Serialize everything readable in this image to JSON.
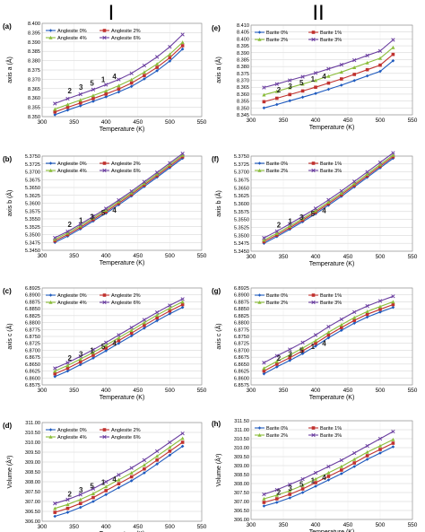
{
  "columns": [
    {
      "roman": "I"
    },
    {
      "roman": "II"
    }
  ],
  "colors": {
    "s0": "#1f5bbf",
    "s1": "#c0312e",
    "s2": "#8bbd3b",
    "s3": "#6b3fa0"
  },
  "chart_data": [
    {
      "panel": "(a)",
      "type": "line",
      "ylabel": "axis a  (Å)",
      "xlabel": "Temperature  (K)",
      "xlim": [
        300,
        550
      ],
      "xticks": [
        "300",
        "350",
        "400",
        "450",
        "500",
        "550"
      ],
      "ylim": [
        8.35,
        8.4
      ],
      "yticks": [
        "8.350",
        "8.355",
        "8.360",
        "8.365",
        "8.370",
        "8.375",
        "8.380",
        "8.385",
        "8.390",
        "8.395",
        "8.400"
      ],
      "legend": "top-left",
      "x": [
        320,
        340,
        360,
        380,
        400,
        420,
        440,
        460,
        480,
        500,
        520
      ],
      "series": [
        {
          "name": "Anglesite 0%",
          "values": [
            8.351,
            8.3535,
            8.3558,
            8.3582,
            8.3606,
            8.3632,
            8.3662,
            8.3702,
            8.3746,
            8.3798,
            8.3862
          ]
        },
        {
          "name": "Anglesite 2%",
          "values": [
            8.3525,
            8.355,
            8.3573,
            8.3597,
            8.3621,
            8.3648,
            8.368,
            8.372,
            8.3764,
            8.3816,
            8.388
          ]
        },
        {
          "name": "Anglesite 4%",
          "values": [
            8.354,
            8.3565,
            8.3589,
            8.3613,
            8.3638,
            8.3666,
            8.3698,
            8.3738,
            8.3782,
            8.3834,
            8.3898
          ]
        },
        {
          "name": "Anglesite 6%",
          "values": [
            8.357,
            8.3596,
            8.362,
            8.3645,
            8.3671,
            8.3699,
            8.3732,
            8.3774,
            8.382,
            8.3874,
            8.394
          ]
        }
      ],
      "annotations": [
        "2",
        "3",
        "5",
        "1",
        "4"
      ]
    },
    {
      "panel": "(b)",
      "type": "line",
      "ylabel": "axis b  (Å)",
      "xlabel": "Temperature  (K)",
      "xlim": [
        300,
        550
      ],
      "xticks": [
        "300",
        "350",
        "400",
        "450",
        "500",
        "550"
      ],
      "ylim": [
        5.345,
        5.375
      ],
      "yticks": [
        "5.3450",
        "5.3475",
        "5.3500",
        "5.3525",
        "5.3550",
        "5.3575",
        "5.3600",
        "5.3625",
        "5.3650",
        "5.3675",
        "5.3700",
        "5.3725",
        "5.3750"
      ],
      "legend": "top-left",
      "x": [
        320,
        340,
        360,
        380,
        400,
        420,
        440,
        460,
        480,
        500,
        520
      ],
      "series": [
        {
          "name": "Anglesite 0%",
          "values": [
            5.3475,
            5.3495,
            5.3518,
            5.3543,
            5.3568,
            5.3595,
            5.3623,
            5.3653,
            5.3683,
            5.3713,
            5.3743
          ]
        },
        {
          "name": "Anglesite 2%",
          "values": [
            5.348,
            5.35,
            5.3523,
            5.3548,
            5.3573,
            5.36,
            5.3628,
            5.3658,
            5.3688,
            5.3718,
            5.3748
          ]
        },
        {
          "name": "Anglesite 4%",
          "values": [
            5.3485,
            5.3505,
            5.3528,
            5.3553,
            5.3578,
            5.3605,
            5.3633,
            5.3663,
            5.3693,
            5.3723,
            5.3753
          ]
        },
        {
          "name": "Anglesite 6%",
          "values": [
            5.349,
            5.351,
            5.3533,
            5.3558,
            5.3583,
            5.361,
            5.3638,
            5.3668,
            5.3698,
            5.3728,
            5.3758
          ]
        }
      ],
      "annotations": [
        "2",
        "1",
        "3",
        "5",
        "4"
      ]
    },
    {
      "panel": "(c)",
      "type": "line",
      "ylabel": "axis c  (Å)",
      "xlabel": "Temperature  (K)",
      "xlim": [
        300,
        550
      ],
      "xticks": [
        "300",
        "350",
        "400",
        "450",
        "500",
        "550"
      ],
      "ylim": [
        6.8575,
        6.8925
      ],
      "yticks": [
        "6.8575",
        "6.8600",
        "6.8625",
        "6.8650",
        "6.8675",
        "6.8700",
        "6.8725",
        "6.8750",
        "6.8775",
        "6.8800",
        "6.8825",
        "6.8850",
        "6.8875",
        "6.8900",
        "6.8925"
      ],
      "legend": "top-left",
      "x": [
        320,
        340,
        360,
        380,
        400,
        420,
        440,
        460,
        480,
        500,
        520
      ],
      "series": [
        {
          "name": "Anglesite 0%",
          "values": [
            6.8605,
            6.8625,
            6.8648,
            6.8672,
            6.8698,
            6.8725,
            6.8752,
            6.878,
            6.8807,
            6.8832,
            6.8855
          ]
        },
        {
          "name": "Anglesite 2%",
          "values": [
            6.8615,
            6.8635,
            6.8658,
            6.8682,
            6.8708,
            6.8735,
            6.8762,
            6.879,
            6.8817,
            6.8842,
            6.8865
          ]
        },
        {
          "name": "Anglesite 4%",
          "values": [
            6.8625,
            6.8645,
            6.8668,
            6.8692,
            6.8718,
            6.8745,
            6.8772,
            6.88,
            6.8827,
            6.8852,
            6.8875
          ]
        },
        {
          "name": "Anglesite 6%",
          "values": [
            6.8635,
            6.8655,
            6.8678,
            6.8702,
            6.8728,
            6.8755,
            6.8782,
            6.881,
            6.8837,
            6.8862,
            6.8885
          ]
        }
      ],
      "annotations": [
        "2",
        "3",
        "1",
        "5",
        "4"
      ]
    },
    {
      "panel": "(d)",
      "type": "line",
      "ylabel": "Volume  (Å³)",
      "xlabel": "Temperature  (K)",
      "xlim": [
        300,
        550
      ],
      "xticks": [
        "300",
        "350",
        "400",
        "450",
        "500",
        "550"
      ],
      "ylim": [
        306.0,
        311.0
      ],
      "yticks": [
        "306.00",
        "306.50",
        "307.00",
        "307.50",
        "308.00",
        "308.50",
        "309.00",
        "309.50",
        "310.00",
        "310.50",
        "311.00"
      ],
      "legend": "top-left",
      "x": [
        320,
        340,
        360,
        380,
        400,
        420,
        440,
        460,
        480,
        500,
        520
      ],
      "series": [
        {
          "name": "Anglesite 0%",
          "values": [
            306.25,
            306.45,
            306.7,
            307.0,
            307.35,
            307.7,
            308.05,
            308.45,
            308.9,
            309.35,
            309.8
          ]
        },
        {
          "name": "Anglesite 2%",
          "values": [
            306.45,
            306.65,
            306.9,
            307.2,
            307.55,
            307.9,
            308.25,
            308.65,
            309.1,
            309.55,
            310.0
          ]
        },
        {
          "name": "Anglesite 4%",
          "values": [
            306.65,
            306.85,
            307.1,
            307.4,
            307.75,
            308.1,
            308.45,
            308.85,
            309.3,
            309.75,
            310.2
          ]
        },
        {
          "name": "Anglesite 6%",
          "values": [
            306.9,
            307.1,
            307.35,
            307.65,
            308.0,
            308.35,
            308.7,
            309.1,
            309.55,
            310.0,
            310.45
          ]
        }
      ],
      "annotations": [
        "2",
        "3",
        "5",
        "1",
        "4"
      ]
    },
    {
      "panel": "(e)",
      "type": "line",
      "ylabel": "axis a  (Å)",
      "xlabel": "Temperature  (K)",
      "xlim": [
        300,
        550
      ],
      "xticks": [
        "300",
        "350",
        "400",
        "450",
        "500",
        "550"
      ],
      "ylim": [
        8.345,
        8.41
      ],
      "yticks": [
        "8.345",
        "8.350",
        "8.355",
        "8.360",
        "8.365",
        "8.370",
        "8.375",
        "8.380",
        "8.385",
        "8.390",
        "8.395",
        "8.400",
        "8.405",
        "8.410"
      ],
      "legend": "top-left",
      "x": [
        320,
        340,
        360,
        380,
        400,
        420,
        440,
        460,
        480,
        500,
        520
      ],
      "series": [
        {
          "name": "Barite 0%",
          "values": [
            8.35,
            8.3525,
            8.3552,
            8.3578,
            8.3605,
            8.3635,
            8.3665,
            8.3698,
            8.3732,
            8.3765,
            8.3842
          ]
        },
        {
          "name": "Barite 1%",
          "values": [
            8.3545,
            8.357,
            8.3597,
            8.3623,
            8.365,
            8.368,
            8.371,
            8.3743,
            8.3777,
            8.381,
            8.3888
          ]
        },
        {
          "name": "Barite 2%",
          "values": [
            8.3595,
            8.362,
            8.3647,
            8.3673,
            8.37,
            8.373,
            8.376,
            8.3793,
            8.3827,
            8.386,
            8.3938
          ]
        },
        {
          "name": "Barite 3%",
          "values": [
            8.3648,
            8.3673,
            8.37,
            8.3726,
            8.3753,
            8.3783,
            8.3813,
            8.3846,
            8.388,
            8.3913,
            8.3993
          ]
        }
      ],
      "annotations": [
        "2",
        "3",
        "5",
        "1",
        "4"
      ]
    },
    {
      "panel": "(f)",
      "type": "line",
      "ylabel": "axis b  (Å)",
      "xlabel": "Temperature  (K)",
      "xlim": [
        300,
        550
      ],
      "xticks": [
        "300",
        "350",
        "400",
        "450",
        "500",
        "550"
      ],
      "ylim": [
        5.345,
        5.375
      ],
      "yticks": [
        "5.3450",
        "5.3475",
        "5.3500",
        "5.3525",
        "5.3550",
        "5.3575",
        "5.3600",
        "5.3625",
        "5.3650",
        "5.3675",
        "5.3700",
        "5.3725",
        "5.3750"
      ],
      "legend": "top-left",
      "x": [
        320,
        340,
        360,
        380,
        400,
        420,
        440,
        460,
        480,
        500,
        520
      ],
      "series": [
        {
          "name": "Barite 0%",
          "values": [
            5.3475,
            5.3496,
            5.3519,
            5.3543,
            5.3568,
            5.3595,
            5.3623,
            5.3653,
            5.3683,
            5.3713,
            5.3743
          ]
        },
        {
          "name": "Barite 1%",
          "values": [
            5.348,
            5.3501,
            5.3524,
            5.3548,
            5.3573,
            5.36,
            5.3628,
            5.3658,
            5.3688,
            5.3718,
            5.3748
          ]
        },
        {
          "name": "Barite 2%",
          "values": [
            5.3485,
            5.3506,
            5.3529,
            5.3553,
            5.3578,
            5.3605,
            5.3633,
            5.3663,
            5.3693,
            5.3723,
            5.3753
          ]
        },
        {
          "name": "Barite 3%",
          "values": [
            5.3492,
            5.3513,
            5.3536,
            5.356,
            5.3585,
            5.3612,
            5.364,
            5.367,
            5.37,
            5.373,
            5.376
          ]
        }
      ],
      "annotations": [
        "2",
        "1",
        "3",
        "5",
        "4"
      ]
    },
    {
      "panel": "(g)",
      "type": "line",
      "ylabel": "axis c  (Å)",
      "xlabel": "Temperature  (K)",
      "xlim": [
        300,
        550
      ],
      "xticks": [
        "300",
        "350",
        "400",
        "450",
        "500",
        "550"
      ],
      "ylim": [
        6.8575,
        6.8925
      ],
      "yticks": [
        "6.8575",
        "6.8600",
        "6.8625",
        "6.8650",
        "6.8675",
        "6.8700",
        "6.8725",
        "6.8750",
        "6.8775",
        "6.8800",
        "6.8825",
        "6.8850",
        "6.8875",
        "6.8900",
        "6.8925"
      ],
      "legend": "top-left",
      "x": [
        320,
        340,
        360,
        380,
        400,
        420,
        440,
        460,
        480,
        500,
        520
      ],
      "series": [
        {
          "name": "Barite 0%",
          "values": [
            6.8615,
            6.864,
            6.8663,
            6.8688,
            6.8715,
            6.8745,
            6.8772,
            6.8798,
            6.882,
            6.8838,
            6.8855
          ]
        },
        {
          "name": "Barite 1%",
          "values": [
            6.8625,
            6.865,
            6.8673,
            6.8698,
            6.8725,
            6.8755,
            6.8782,
            6.8808,
            6.883,
            6.8848,
            6.8865
          ]
        },
        {
          "name": "Barite 2%",
          "values": [
            6.8635,
            6.866,
            6.8683,
            6.8708,
            6.8735,
            6.8765,
            6.8792,
            6.8818,
            6.884,
            6.8858,
            6.8875
          ]
        },
        {
          "name": "Barite 3%",
          "values": [
            6.8655,
            6.868,
            6.8703,
            6.8728,
            6.8755,
            6.8785,
            6.8812,
            6.8838,
            6.886,
            6.8878,
            6.8895
          ]
        }
      ],
      "annotations": [
        "2",
        "3",
        "5",
        "1",
        "4"
      ]
    },
    {
      "panel": "(h)",
      "type": "line",
      "ylabel": "Volume  (Å³)",
      "xlabel": "Temperature  (K)",
      "xlim": [
        300,
        550
      ],
      "xticks": [
        "300",
        "350",
        "400",
        "450",
        "500",
        "550"
      ],
      "ylim": [
        306.0,
        311.5
      ],
      "yticks": [
        "306.00",
        "306.50",
        "307.00",
        "307.50",
        "308.00",
        "308.50",
        "309.00",
        "309.50",
        "310.00",
        "310.50",
        "311.00",
        "311.50"
      ],
      "legend": "top-left",
      "x": [
        320,
        340,
        360,
        380,
        400,
        420,
        440,
        460,
        480,
        500,
        520
      ],
      "series": [
        {
          "name": "Barite 0%",
          "values": [
            306.75,
            306.95,
            307.2,
            307.5,
            307.85,
            308.2,
            308.55,
            308.95,
            309.35,
            309.7,
            310.05
          ]
        },
        {
          "name": "Barite 1%",
          "values": [
            306.95,
            307.15,
            307.4,
            307.7,
            308.05,
            308.4,
            308.75,
            309.15,
            309.55,
            309.9,
            310.25
          ]
        },
        {
          "name": "Barite 2%",
          "values": [
            307.15,
            307.35,
            307.6,
            307.9,
            308.25,
            308.6,
            308.95,
            309.35,
            309.75,
            310.1,
            310.45
          ]
        },
        {
          "name": "Barite 3%",
          "values": [
            307.4,
            307.65,
            307.95,
            308.25,
            308.6,
            308.95,
            309.3,
            309.7,
            310.1,
            310.5,
            310.9
          ]
        }
      ],
      "annotations": [
        "2",
        "3",
        "5",
        "1",
        "4"
      ]
    }
  ]
}
